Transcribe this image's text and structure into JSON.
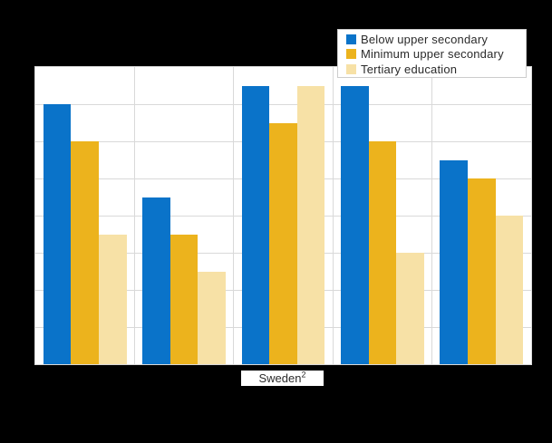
{
  "background_color": "#000000",
  "plot": {
    "background_color": "#ffffff",
    "border_color": "#d9d9d9",
    "gridline_color": "#d9d9d9"
  },
  "legend": {
    "position": "top-right",
    "background_color": "#ffffff",
    "border_color": "#cccccc"
  },
  "x_axis": {
    "visible_label": {
      "text": "Sweden",
      "superscript": "2"
    }
  },
  "chart_data": {
    "type": "bar",
    "title": "",
    "xlabel": "",
    "ylabel": "",
    "ylim": [
      0,
      80
    ],
    "y_gridline_step": 10,
    "grid": true,
    "legend_position": "top-right",
    "categories": [
      "",
      "",
      "Sweden²",
      "",
      ""
    ],
    "series": [
      {
        "name": "Below upper secondary",
        "color": "#0a73c9",
        "values": [
          70,
          45,
          75,
          75,
          55
        ]
      },
      {
        "name": "Minimum upper secondary",
        "color": "#ecb31d",
        "values": [
          60,
          35,
          65,
          60,
          50
        ]
      },
      {
        "name": "Tertiary education",
        "color": "#f7e1a6",
        "values": [
          35,
          25,
          75,
          30,
          40
        ]
      }
    ]
  }
}
